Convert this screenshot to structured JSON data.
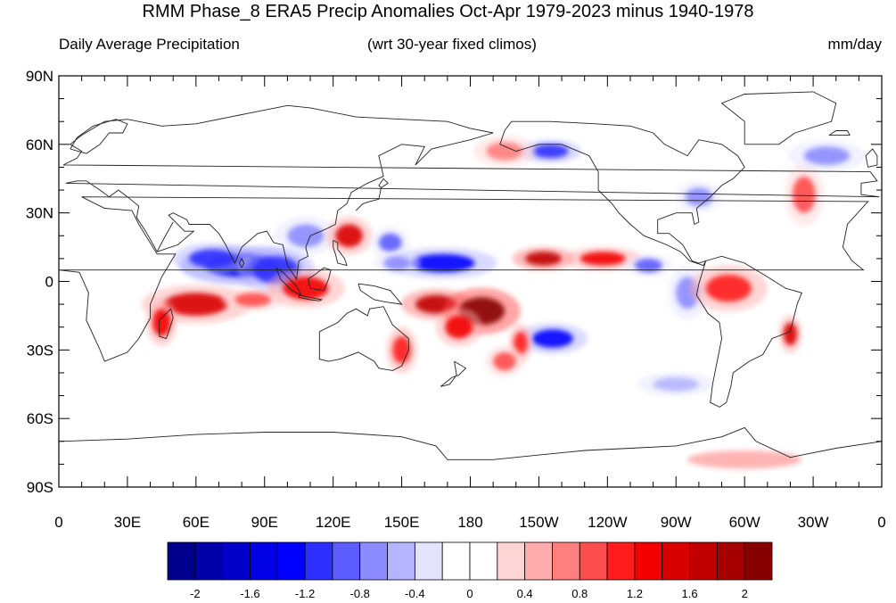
{
  "title": "RMM Phase_8 ERA5 Precip Anomalies Oct-Apr 1979-2023 minus 1940-1978",
  "left_subtitle": "Daily Average Precipitation",
  "center_subtitle": "(wrt 30-year fixed climos)",
  "units": "mm/day",
  "map": {
    "lon_range": [
      0,
      360
    ],
    "lat_range": [
      -90,
      90
    ],
    "lat_labels": [
      {
        "lat": 90,
        "label": "90N"
      },
      {
        "lat": 60,
        "label": "60N"
      },
      {
        "lat": 30,
        "label": "30N"
      },
      {
        "lat": 0,
        "label": "0"
      },
      {
        "lat": -30,
        "label": "30S"
      },
      {
        "lat": -60,
        "label": "60S"
      },
      {
        "lat": -90,
        "label": "90S"
      }
    ],
    "lon_labels": [
      {
        "lon": 0,
        "label": "0"
      },
      {
        "lon": 30,
        "label": "30E"
      },
      {
        "lon": 60,
        "label": "60E"
      },
      {
        "lon": 90,
        "label": "90E"
      },
      {
        "lon": 120,
        "label": "120E"
      },
      {
        "lon": 150,
        "label": "150E"
      },
      {
        "lon": 180,
        "label": "180"
      },
      {
        "lon": 210,
        "label": "150W"
      },
      {
        "lon": 240,
        "label": "120W"
      },
      {
        "lon": 270,
        "label": "90W"
      },
      {
        "lon": 300,
        "label": "60W"
      },
      {
        "lon": 330,
        "label": "30W"
      },
      {
        "lon": 360,
        "label": "0"
      }
    ],
    "anomaly_regions": [
      {
        "lon": 80,
        "lat": 7,
        "rlon": 16,
        "rlat": 5,
        "value": -1.6
      },
      {
        "lon": 67,
        "lat": 10,
        "rlon": 10,
        "rlat": 4,
        "value": -1.2
      },
      {
        "lon": 95,
        "lat": 5,
        "rlon": 10,
        "rlat": 6,
        "value": -1.2
      },
      {
        "lon": 108,
        "lat": 20,
        "rlon": 8,
        "rlat": 5,
        "value": -0.8
      },
      {
        "lon": 60,
        "lat": -10,
        "rlon": 14,
        "rlat": 5,
        "value": 1.4
      },
      {
        "lon": 85,
        "lat": -8,
        "rlon": 8,
        "rlat": 3,
        "value": 0.8
      },
      {
        "lon": 108,
        "lat": -3,
        "rlon": 10,
        "rlat": 5,
        "value": 1.2
      },
      {
        "lon": 45,
        "lat": -18,
        "rlon": 4,
        "rlat": 6,
        "value": 1.2
      },
      {
        "lon": 127,
        "lat": 20,
        "rlon": 6,
        "rlat": 5,
        "value": 1.4
      },
      {
        "lon": 145,
        "lat": 17,
        "rlon": 5,
        "rlat": 4,
        "value": -1.0
      },
      {
        "lon": 168,
        "lat": 8,
        "rlon": 14,
        "rlat": 4,
        "value": -1.4
      },
      {
        "lon": 148,
        "lat": 8,
        "rlon": 6,
        "rlat": 3,
        "value": -0.8
      },
      {
        "lon": 165,
        "lat": -10,
        "rlon": 9,
        "rlat": 4,
        "value": 1.6
      },
      {
        "lon": 185,
        "lat": -13,
        "rlon": 10,
        "rlat": 6,
        "value": 2.0
      },
      {
        "lon": 175,
        "lat": -20,
        "rlon": 6,
        "rlat": 5,
        "value": 1.2
      },
      {
        "lon": 212,
        "lat": 10,
        "rlon": 8,
        "rlat": 3,
        "value": 1.6
      },
      {
        "lon": 238,
        "lat": 10,
        "rlon": 10,
        "rlat": 3,
        "value": 1.2
      },
      {
        "lon": 258,
        "lat": 7,
        "rlon": 6,
        "rlat": 3,
        "value": -1.0
      },
      {
        "lon": 216,
        "lat": -25,
        "rlon": 9,
        "rlat": 4,
        "value": -1.4
      },
      {
        "lon": 202,
        "lat": -27,
        "rlon": 3,
        "rlat": 5,
        "value": 1.0
      },
      {
        "lon": 150,
        "lat": -30,
        "rlon": 4,
        "rlat": 6,
        "value": 1.0
      },
      {
        "lon": 195,
        "lat": -35,
        "rlon": 5,
        "rlat": 4,
        "value": 0.8
      },
      {
        "lon": 275,
        "lat": -5,
        "rlon": 5,
        "rlat": 7,
        "value": -0.8
      },
      {
        "lon": 293,
        "lat": -3,
        "rlon": 10,
        "rlat": 6,
        "value": 1.0
      },
      {
        "lon": 320,
        "lat": -23,
        "rlon": 3,
        "rlat": 5,
        "value": 1.4
      },
      {
        "lon": 280,
        "lat": 37,
        "rlon": 6,
        "rlat": 4,
        "value": -0.8
      },
      {
        "lon": 326,
        "lat": 38,
        "rlon": 5,
        "rlat": 8,
        "value": 0.8
      },
      {
        "lon": 336,
        "lat": 55,
        "rlon": 10,
        "rlat": 4,
        "value": -0.8
      },
      {
        "lon": 215,
        "lat": 57,
        "rlon": 8,
        "rlat": 3,
        "value": -1.2
      },
      {
        "lon": 195,
        "lat": 57,
        "rlon": 8,
        "rlat": 4,
        "value": 0.6
      },
      {
        "lon": 270,
        "lat": -45,
        "rlon": 10,
        "rlat": 3,
        "value": -0.6
      },
      {
        "lon": 300,
        "lat": -78,
        "rlon": 25,
        "rlat": 4,
        "value": 0.4
      }
    ]
  },
  "colorbar": {
    "colors": [
      "#00008c",
      "#0000aa",
      "#0000c8",
      "#0000e6",
      "#0000ff",
      "#2e2eff",
      "#5c5cff",
      "#8c8cff",
      "#b4b4ff",
      "#e4e4ff",
      "#ffffff",
      "#ffffff",
      "#ffd4d4",
      "#ffacac",
      "#ff7e7e",
      "#ff4c4c",
      "#ff1c1c",
      "#f20000",
      "#d90000",
      "#c00000",
      "#a60000",
      "#870000"
    ],
    "labels": [
      {
        "index": 1,
        "text": "-2"
      },
      {
        "index": 3,
        "text": "-1.6"
      },
      {
        "index": 5,
        "text": "-1.2"
      },
      {
        "index": 7,
        "text": "-0.8"
      },
      {
        "index": 9,
        "text": "-0.4"
      },
      {
        "index": 11,
        "text": "0"
      },
      {
        "index": 13,
        "text": "0.4"
      },
      {
        "index": 15,
        "text": "0.8"
      },
      {
        "index": 17,
        "text": "1.2"
      },
      {
        "index": 19,
        "text": "1.6"
      },
      {
        "index": 21,
        "text": "2"
      }
    ]
  }
}
